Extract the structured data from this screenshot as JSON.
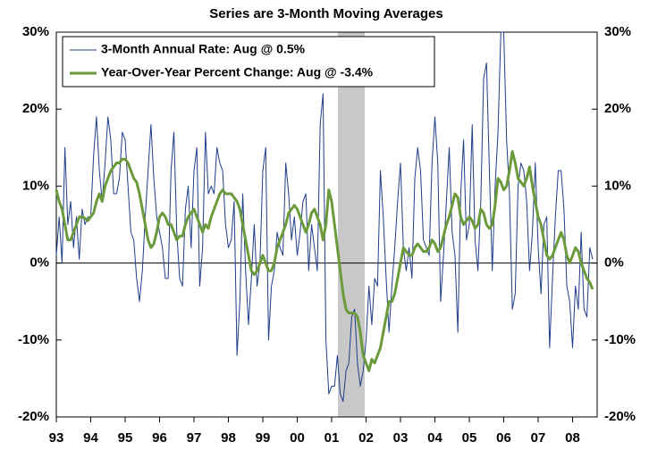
{
  "chart_data": {
    "type": "line",
    "title": "Series are 3-Month Moving Averages",
    "categories": [
      "93",
      null,
      null,
      null,
      null,
      null,
      null,
      null,
      null,
      null,
      null,
      null,
      "94",
      null,
      null,
      null,
      null,
      null,
      null,
      null,
      null,
      null,
      null,
      null,
      "95",
      null,
      null,
      null,
      null,
      null,
      null,
      null,
      null,
      null,
      null,
      null,
      "96",
      null,
      null,
      null,
      null,
      null,
      null,
      null,
      null,
      null,
      null,
      null,
      "97",
      null,
      null,
      null,
      null,
      null,
      null,
      null,
      null,
      null,
      null,
      null,
      "98",
      null,
      null,
      null,
      null,
      null,
      null,
      null,
      null,
      null,
      null,
      null,
      "99",
      null,
      null,
      null,
      null,
      null,
      null,
      null,
      null,
      null,
      null,
      null,
      "00",
      null,
      null,
      null,
      null,
      null,
      null,
      null,
      null,
      null,
      null,
      null,
      "01",
      null,
      null,
      null,
      null,
      null,
      null,
      null,
      null,
      null,
      null,
      null,
      "02",
      null,
      null,
      null,
      null,
      null,
      null,
      null,
      null,
      null,
      null,
      null,
      "03",
      null,
      null,
      null,
      null,
      null,
      null,
      null,
      null,
      null,
      null,
      null,
      "04",
      null,
      null,
      null,
      null,
      null,
      null,
      null,
      null,
      null,
      null,
      null,
      "05",
      null,
      null,
      null,
      null,
      null,
      null,
      null,
      null,
      null,
      null,
      null,
      "06",
      null,
      null,
      null,
      null,
      null,
      null,
      null,
      null,
      null,
      null,
      null,
      "07",
      null,
      null,
      null,
      null,
      null,
      null,
      null,
      null,
      null,
      null,
      null,
      "08",
      null,
      null,
      null,
      null,
      null,
      null,
      null
    ],
    "series": [
      {
        "name": "3-Month Annual Rate: Aug @ 0.5%",
        "color": "#1f3d8a",
        "width": 1,
        "values": [
          1,
          6,
          0,
          15,
          5,
          8,
          2,
          6,
          0.5,
          7,
          5,
          6,
          6,
          14,
          19,
          12,
          8,
          13,
          19,
          16,
          9,
          9,
          11,
          17,
          16,
          10,
          4,
          3,
          -2,
          -5,
          -1,
          6,
          12,
          18,
          11,
          6,
          4,
          2,
          -2,
          -2,
          12,
          17,
          4,
          -2,
          -3,
          7,
          10,
          2,
          12,
          15,
          -3,
          2,
          17,
          9,
          10,
          9,
          15,
          13,
          12,
          5,
          2,
          3,
          8,
          -12,
          -5,
          9,
          -1,
          -8,
          -2,
          5,
          -3,
          0,
          12,
          15,
          -10,
          -3,
          -1,
          4,
          2,
          1,
          13,
          9,
          3,
          6,
          1,
          4,
          8,
          9,
          -1,
          5,
          2,
          -1,
          18,
          22,
          -10,
          -17,
          -16,
          -16,
          -12,
          -17,
          -18,
          -14,
          -13,
          -7,
          -6,
          -13,
          -16,
          -14,
          -10,
          -3,
          -8,
          -2,
          -3,
          12,
          6,
          -2,
          -9,
          -3,
          2,
          8,
          13,
          2,
          -1,
          2,
          -2,
          11,
          15,
          12,
          3,
          2,
          1,
          13,
          19,
          13,
          -5,
          1,
          8,
          15,
          4,
          1,
          -9,
          9,
          16,
          3,
          5,
          18,
          3,
          -1,
          8,
          24,
          26,
          12,
          -1,
          10,
          17,
          30,
          30,
          16,
          9,
          -6,
          -4,
          10,
          13,
          12,
          8,
          -1,
          4,
          13,
          2,
          -4,
          5,
          6,
          -11,
          -2,
          6,
          12,
          12,
          7,
          -3,
          -5,
          -11,
          -3,
          -6,
          4,
          -6,
          -7,
          2,
          0.5
        ]
      },
      {
        "name": "Year-Over-Year Percent Change: Aug @ -3.4%",
        "color": "#6a9a3a",
        "width": 3,
        "values": [
          9.5,
          8,
          7,
          5,
          3,
          3,
          4,
          5,
          6,
          6,
          5.8,
          5.5,
          6,
          6.5,
          8,
          9,
          8,
          10,
          11,
          12,
          12.5,
          13,
          13,
          13.5,
          13.5,
          13,
          12,
          11,
          10.5,
          9,
          7,
          5,
          3,
          2,
          2.5,
          4,
          6,
          6.5,
          6,
          5,
          5,
          4,
          3,
          3.5,
          3.5,
          5,
          6,
          6.5,
          7,
          6,
          5,
          4,
          5,
          4.5,
          6,
          7,
          8,
          9,
          9.5,
          9,
          9,
          9,
          8.5,
          8,
          7,
          5,
          3,
          1,
          -1,
          -1.5,
          -1,
          0,
          1,
          0,
          -1,
          -1,
          0,
          2,
          3,
          4,
          5,
          6.5,
          7,
          7.5,
          7,
          6,
          5,
          4,
          5,
          6.5,
          7,
          6,
          5,
          3,
          5,
          9.5,
          8,
          5,
          2,
          -1,
          -4,
          -6,
          -6.5,
          -6.5,
          -6.5,
          -7,
          -9,
          -12,
          -13,
          -14,
          -12.5,
          -13,
          -12,
          -11,
          -9,
          -7,
          -5,
          -5,
          -4,
          -2,
          0,
          2,
          1.5,
          1,
          1,
          2,
          2.5,
          2,
          1.5,
          1.5,
          2,
          3,
          2.5,
          1.5,
          2,
          3.5,
          5,
          6,
          7.5,
          9,
          8.5,
          6,
          5,
          5.5,
          6,
          5.5,
          4.5,
          5,
          7,
          6.5,
          5,
          4.5,
          5,
          7.5,
          11,
          10.5,
          9.5,
          10,
          12,
          14.5,
          13,
          11,
          10.5,
          10,
          11,
          12.5,
          10,
          8,
          6,
          5,
          3,
          1,
          0.5,
          1,
          2,
          3,
          4,
          3,
          1,
          0,
          1,
          2,
          1.5,
          0,
          -1,
          -2,
          -2.5,
          -3.4
        ]
      }
    ],
    "ylim": [
      -20,
      30
    ],
    "yticks": [
      {
        "value": -20,
        "label": "-20%"
      },
      {
        "value": -10,
        "label": "-10%"
      },
      {
        "value": 0,
        "label": "0%"
      },
      {
        "value": 10,
        "label": "10%"
      },
      {
        "value": 20,
        "label": "20%"
      },
      {
        "value": 30,
        "label": "30%"
      }
    ],
    "y2lim": [
      -20,
      30
    ],
    "y2ticks": [
      {
        "value": -20,
        "label": "-20%"
      },
      {
        "value": -10,
        "label": "-10%"
      },
      {
        "value": 0,
        "label": "0%"
      },
      {
        "value": 10,
        "label": "10%"
      },
      {
        "value": 20,
        "label": "20%"
      },
      {
        "value": 30,
        "label": "30%"
      }
    ],
    "legend": "upper left"
  }
}
